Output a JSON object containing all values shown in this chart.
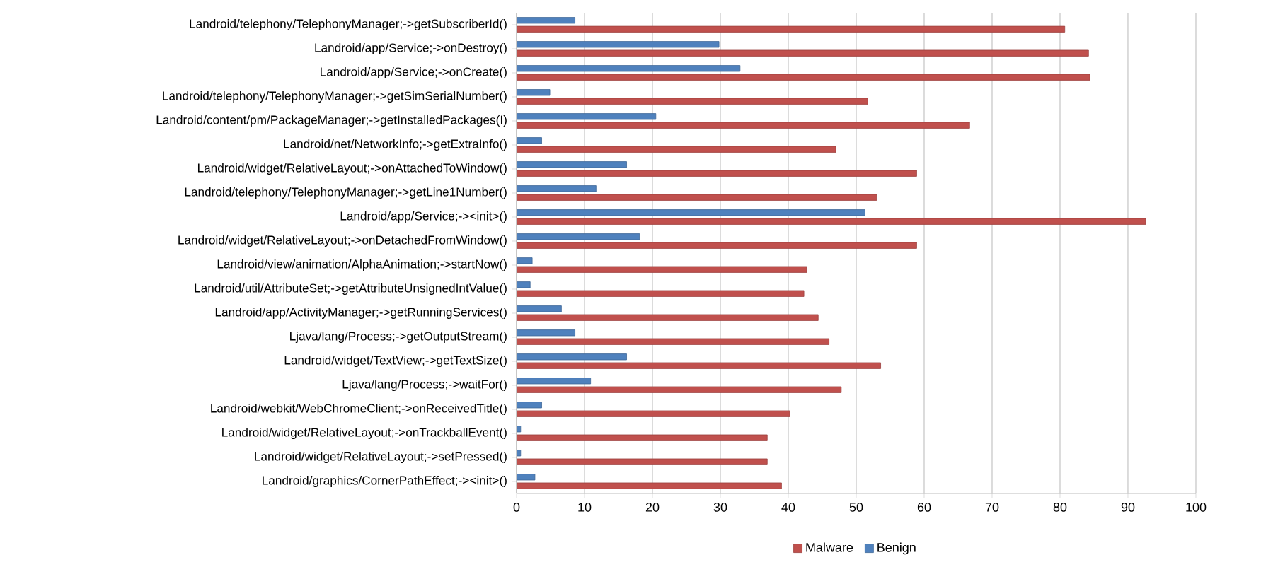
{
  "chart_data": {
    "type": "bar",
    "orientation": "horizontal",
    "categories": [
      "Landroid/telephony/TelephonyManager;->getSubscriberId()",
      "Landroid/app/Service;->onDestroy()",
      "Landroid/app/Service;->onCreate()",
      "Landroid/telephony/TelephonyManager;->getSimSerialNumber()",
      "Landroid/content/pm/PackageManager;->getInstalledPackages(I)",
      "Landroid/net/NetworkInfo;->getExtraInfo()",
      "Landroid/widget/RelativeLayout;->onAttachedToWindow()",
      "Landroid/telephony/TelephonyManager;->getLine1Number()",
      "Landroid/app/Service;-><init>()",
      "Landroid/widget/RelativeLayout;->onDetachedFromWindow()",
      "Landroid/view/animation/AlphaAnimation;->startNow()",
      "Landroid/util/AttributeSet;->getAttributeUnsignedIntValue()",
      "Landroid/app/ActivityManager;->getRunningServices()",
      "Ljava/lang/Process;->getOutputStream()",
      "Landroid/widget/TextView;->getTextSize()",
      "Ljava/lang/Process;->waitFor()",
      "Landroid/webkit/WebChromeClient;->onReceivedTitle()",
      "Landroid/widget/RelativeLayout;->onTrackballEvent()",
      "Landroid/widget/RelativeLayout;->setPressed()",
      "Landroid/graphics/CornerPathEffect;-><init>()"
    ],
    "series": [
      {
        "name": "Malware",
        "color": "#c0504d",
        "values": [
          80.7,
          84.2,
          84.4,
          51.7,
          66.7,
          47.0,
          58.9,
          53.0,
          92.6,
          58.9,
          42.7,
          42.3,
          44.4,
          46.0,
          53.6,
          47.8,
          40.2,
          36.9,
          36.9,
          39.0
        ]
      },
      {
        "name": "Benign",
        "color": "#4f81bd",
        "values": [
          8.6,
          29.8,
          32.9,
          4.9,
          20.5,
          3.7,
          16.2,
          11.7,
          51.3,
          18.1,
          2.3,
          2.0,
          6.6,
          8.6,
          16.2,
          10.9,
          3.7,
          0.6,
          0.6,
          2.7
        ]
      }
    ],
    "xlim": [
      0,
      100
    ],
    "xticks": [
      0,
      10,
      20,
      30,
      40,
      50,
      60,
      70,
      80,
      90,
      100
    ],
    "grid": "x",
    "legend": "bottom"
  }
}
